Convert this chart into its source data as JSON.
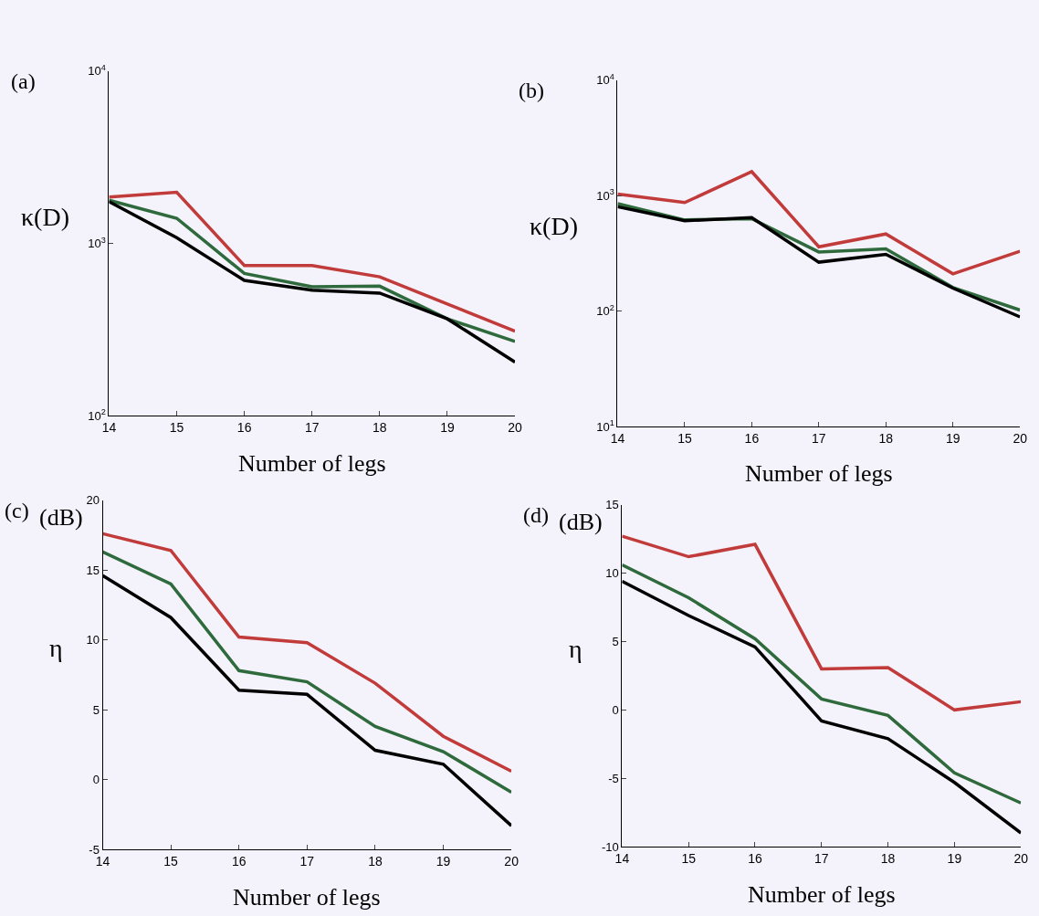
{
  "chart_data": [
    {
      "type": "line",
      "title": "(a)",
      "xlabel": "Number of legs",
      "ylabel": "κ(D)",
      "log": "y",
      "grid": false,
      "x": [
        14,
        15,
        16,
        17,
        18,
        19,
        20
      ],
      "xlim": [
        14,
        20
      ],
      "xticks": [
        14,
        15,
        16,
        17,
        18,
        19,
        20
      ],
      "ylim": [
        100,
        10000
      ],
      "yticks": [
        {
          "value": 100,
          "label": "10$^{2}$"
        },
        {
          "value": 1000,
          "label": "10$^{3}$"
        },
        {
          "value": 10000,
          "label": "10$^{4}$"
        }
      ],
      "series": [
        {
          "color": "#c23b3b",
          "values": [
            1860,
            1980,
            745,
            745,
            640,
            445,
            310
          ]
        },
        {
          "color": "#2f6a3c",
          "values": [
            1780,
            1400,
            670,
            560,
            565,
            365,
            270
          ]
        },
        {
          "color": "#000000",
          "values": [
            1750,
            1080,
            610,
            535,
            515,
            365,
            205
          ]
        }
      ]
    },
    {
      "type": "line",
      "title": "(b)",
      "xlabel": "Number of legs",
      "ylabel": "κ(D)",
      "log": "y",
      "grid": false,
      "x": [
        14,
        15,
        16,
        17,
        18,
        19,
        20
      ],
      "xlim": [
        14,
        20
      ],
      "xticks": [
        14,
        15,
        16,
        17,
        18,
        19,
        20
      ],
      "ylim": [
        10,
        10000
      ],
      "yticks": [
        {
          "value": 10,
          "label": "10$^{1}$"
        },
        {
          "value": 100,
          "label": "10$^{2}$"
        },
        {
          "value": 1000,
          "label": "10$^{3}$"
        },
        {
          "value": 10000,
          "label": "10$^{4}$"
        }
      ],
      "series": [
        {
          "color": "#c23b3b",
          "values": [
            1030,
            870,
            1610,
            360,
            465,
            210,
            330
          ]
        },
        {
          "color": "#2f6a3c",
          "values": [
            850,
            615,
            630,
            325,
            345,
            160,
            102
          ]
        },
        {
          "color": "#000000",
          "values": [
            800,
            605,
            645,
            265,
            310,
            158,
            89
          ]
        }
      ]
    },
    {
      "type": "line",
      "title": "(c)",
      "xlabel": "Number of legs",
      "ylabel": "η",
      "annotations": [
        "(dB)"
      ],
      "grid": false,
      "x": [
        14,
        15,
        16,
        17,
        18,
        19,
        20
      ],
      "xlim": [
        14,
        20
      ],
      "xticks": [
        14,
        15,
        16,
        17,
        18,
        19,
        20
      ],
      "ylim": [
        -5,
        20
      ],
      "yticks": [
        -5,
        0,
        5,
        10,
        15,
        20
      ],
      "series": [
        {
          "color": "#c23b3b",
          "values": [
            17.6,
            16.4,
            10.2,
            9.8,
            6.9,
            3.1,
            0.6
          ]
        },
        {
          "color": "#2f6a3c",
          "values": [
            16.3,
            14.0,
            7.8,
            7.0,
            3.8,
            2.0,
            -0.9
          ]
        },
        {
          "color": "#000000",
          "values": [
            14.6,
            11.6,
            6.4,
            6.1,
            2.1,
            1.1,
            -3.3
          ]
        }
      ]
    },
    {
      "type": "line",
      "title": "(d)",
      "xlabel": "Number of legs",
      "ylabel": "η",
      "annotations": [
        "(dB)"
      ],
      "grid": false,
      "x": [
        14,
        15,
        16,
        17,
        18,
        19,
        20
      ],
      "xlim": [
        14,
        20
      ],
      "xticks": [
        14,
        15,
        16,
        17,
        18,
        19,
        20
      ],
      "ylim": [
        -10,
        15
      ],
      "yticks": [
        -10,
        -5,
        0,
        5,
        10,
        15
      ],
      "series": [
        {
          "color": "#c23b3b",
          "values": [
            12.7,
            11.2,
            12.1,
            3.0,
            3.1,
            0.0,
            0.6
          ]
        },
        {
          "color": "#2f6a3c",
          "values": [
            10.6,
            8.2,
            5.2,
            0.8,
            -0.4,
            -4.6,
            -6.8
          ]
        },
        {
          "color": "#000000",
          "values": [
            9.4,
            6.9,
            4.6,
            -0.8,
            -2.1,
            -5.3,
            -9.0
          ]
        }
      ]
    }
  ]
}
